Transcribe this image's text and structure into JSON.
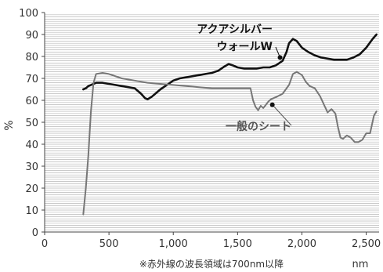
{
  "chart_data": {
    "type": "line",
    "ylabel": "%",
    "xlabel": "nm",
    "footnote": "※赤外線の波長領域は700nm以降",
    "xlim": [
      0,
      2600
    ],
    "ylim": [
      0,
      100
    ],
    "grid": true,
    "x_ticks": [
      0,
      500,
      1000,
      1500,
      2000,
      2500
    ],
    "x_tick_labels": [
      "0",
      "500",
      "1,000",
      "1,500",
      "2,000",
      "2,500"
    ],
    "y_ticks": [
      0,
      10,
      20,
      30,
      40,
      50,
      60,
      70,
      80,
      90,
      100
    ],
    "y_tick_labels": [
      "0",
      "10",
      "20",
      "30",
      "40",
      "50",
      "60",
      "70",
      "80",
      "90",
      "100"
    ],
    "series": [
      {
        "name": "アクアシルバーウォールW",
        "color": "#111111",
        "x": [
          300,
          320,
          340,
          360,
          380,
          400,
          450,
          500,
          550,
          600,
          650,
          700,
          750,
          780,
          800,
          830,
          860,
          900,
          950,
          1000,
          1050,
          1100,
          1150,
          1200,
          1250,
          1300,
          1350,
          1400,
          1430,
          1460,
          1500,
          1550,
          1600,
          1650,
          1700,
          1750,
          1800,
          1850,
          1880,
          1900,
          1930,
          1960,
          2000,
          2050,
          2100,
          2150,
          2200,
          2250,
          2300,
          2350,
          2400,
          2450,
          2500,
          2550,
          2580
        ],
        "y": [
          65,
          65.5,
          66.5,
          67,
          67.5,
          68,
          68,
          67.5,
          67,
          66.5,
          66,
          65.5,
          63,
          61,
          60.5,
          61.5,
          63,
          65,
          67,
          69,
          70,
          70.5,
          71,
          71.5,
          72,
          72.5,
          73.5,
          75.5,
          76.5,
          76,
          75,
          74.5,
          74.5,
          74.5,
          75,
          75,
          76,
          78,
          82,
          86,
          88,
          87,
          84,
          82,
          80.5,
          79.5,
          79,
          78.5,
          78.5,
          78.5,
          79.5,
          81,
          84,
          88,
          90
        ]
      },
      {
        "name": "一般のシート",
        "color": "#777777",
        "x": [
          300,
          320,
          340,
          360,
          380,
          400,
          450,
          500,
          600,
          700,
          800,
          900,
          1000,
          1100,
          1200,
          1300,
          1400,
          1500,
          1550,
          1600,
          1620,
          1640,
          1660,
          1680,
          1700,
          1720,
          1740,
          1760,
          1800,
          1850,
          1900,
          1930,
          1960,
          2000,
          2030,
          2060,
          2100,
          2140,
          2180,
          2200,
          2230,
          2260,
          2280,
          2300,
          2320,
          2350,
          2380,
          2410,
          2440,
          2470,
          2500,
          2530,
          2560,
          2580
        ],
        "y": [
          8,
          20,
          35,
          55,
          68,
          72,
          72.5,
          72,
          70,
          69,
          68,
          67.5,
          67,
          66.5,
          66,
          65.5,
          65.5,
          65.5,
          65.5,
          65.5,
          60,
          57,
          55.5,
          57.5,
          56.5,
          58,
          59.5,
          60.5,
          61.5,
          63,
          67,
          72,
          73,
          71.5,
          68.5,
          66.5,
          65.5,
          62,
          57,
          54.5,
          56,
          54,
          48,
          43,
          42.5,
          44,
          43,
          41,
          41,
          42,
          45,
          45,
          53,
          55
        ]
      }
    ],
    "annotations": [
      {
        "lines": [
          "アクアシルバー",
          "ウォールW"
        ],
        "series": "アクアシルバーウォールW",
        "point": [
          1830,
          79.5
        ]
      },
      {
        "lines": [
          "一般のシート"
        ],
        "series": "一般のシート",
        "point": [
          1770,
          58
        ]
      }
    ]
  }
}
